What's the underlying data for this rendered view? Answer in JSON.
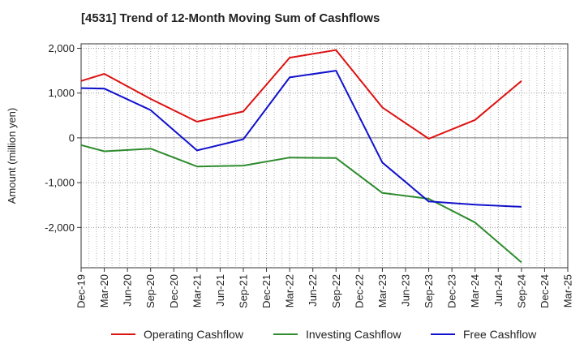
{
  "title": "[4531]  Trend of 12-Month Moving Sum of Cashflows",
  "colors": {
    "operating": "#dd1111",
    "investing": "#2e8b2e",
    "free": "#1111cc",
    "grid": "#9a9a9a",
    "zero": "#777777"
  },
  "chart_data": {
    "type": "line",
    "ylabel": "Amount (million yen)",
    "xlabel": "",
    "categories": [
      "Dec-19",
      "Mar-20",
      "Jun-20",
      "Sep-20",
      "Dec-20",
      "Mar-21",
      "Jun-21",
      "Sep-21",
      "Dec-21",
      "Mar-22",
      "Jun-22",
      "Sep-22",
      "Dec-22",
      "Mar-23",
      "Jun-23",
      "Sep-23",
      "Dec-23",
      "Mar-24",
      "Jun-24",
      "Sep-24",
      "Dec-24",
      "Mar-25"
    ],
    "ylim": [
      -2900,
      2100
    ],
    "yticks": [
      2000,
      1000,
      0,
      -1000,
      -2000
    ],
    "ytick_labels": [
      "2,000",
      "1,000",
      "0",
      "-1,000",
      "-2,000"
    ],
    "grid": true,
    "legend_position": "bottom",
    "series": [
      {
        "name": "Operating Cashflow",
        "color": "#dd1111",
        "values": [
          1270,
          1430,
          null,
          870,
          null,
          360,
          null,
          590,
          null,
          1790,
          null,
          1960,
          null,
          680,
          null,
          -20,
          null,
          400,
          null,
          1270,
          null,
          null
        ]
      },
      {
        "name": "Investing Cashflow",
        "color": "#2e8b2e",
        "values": [
          -160,
          -300,
          null,
          -240,
          null,
          -640,
          null,
          -620,
          null,
          -440,
          null,
          -450,
          null,
          -1230,
          null,
          -1360,
          null,
          -1890,
          null,
          -2780,
          null,
          null
        ]
      },
      {
        "name": "Free Cashflow",
        "color": "#1111cc",
        "values": [
          1110,
          1100,
          null,
          620,
          null,
          -280,
          null,
          -30,
          null,
          1350,
          null,
          1500,
          null,
          -550,
          null,
          -1420,
          null,
          -1490,
          null,
          -1540,
          null,
          null
        ]
      }
    ]
  }
}
